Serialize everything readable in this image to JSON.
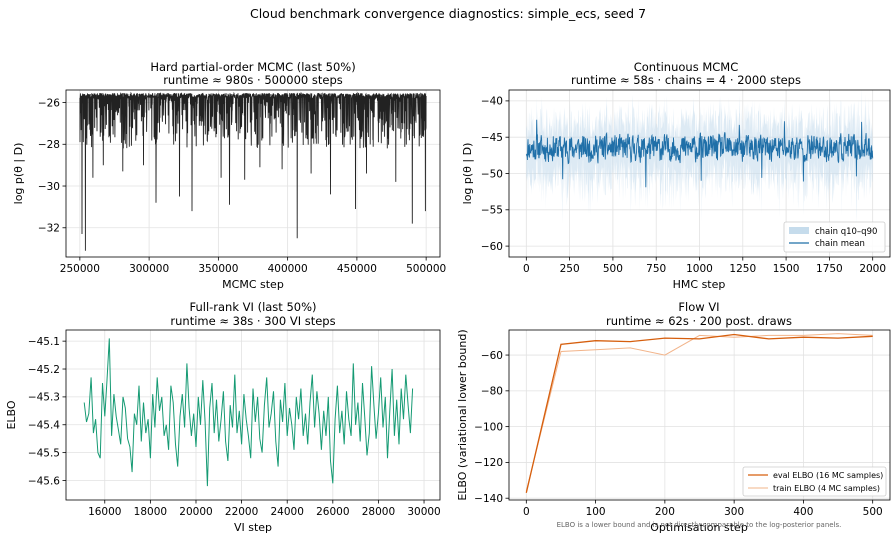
{
  "figure": {
    "suptitle": "Cloud benchmark convergence diagnostics: simple_ecs, seed 7",
    "footnote": "ELBO is a lower bound and is not directly comparable to the log-posterior panels."
  },
  "chart_data": [
    {
      "type": "line",
      "title_line1": "Hard partial-order MCMC (last 50%)",
      "title_line2": "runtime ≈ 980s · 500000 steps",
      "xlabel": "MCMC step",
      "ylabel": "log p(θ | D)",
      "xlim": [
        240000,
        510000
      ],
      "ylim": [
        -33.4,
        -25.4
      ],
      "xticks": [
        250000,
        300000,
        350000,
        400000,
        450000,
        500000
      ],
      "yticks": [
        -32,
        -30,
        -28,
        -26
      ],
      "grid": true,
      "color": "#222222",
      "trace": {
        "x_start": 250000,
        "x_end": 500000,
        "upper": -25.55,
        "typical_low": -28.2,
        "spikes": [
          {
            "x": 251500,
            "y": -32.3
          },
          {
            "x": 254000,
            "y": -33.1
          },
          {
            "x": 259500,
            "y": -29.6
          },
          {
            "x": 267000,
            "y": -29.0
          },
          {
            "x": 281000,
            "y": -29.3
          },
          {
            "x": 296000,
            "y": -29.0
          },
          {
            "x": 305000,
            "y": -30.8
          },
          {
            "x": 322000,
            "y": -30.5
          },
          {
            "x": 331000,
            "y": -31.2
          },
          {
            "x": 352000,
            "y": -29.6
          },
          {
            "x": 358000,
            "y": -30.9
          },
          {
            "x": 369000,
            "y": -29.7
          },
          {
            "x": 380000,
            "y": -29.1
          },
          {
            "x": 396000,
            "y": -29.2
          },
          {
            "x": 407000,
            "y": -32.5
          },
          {
            "x": 417000,
            "y": -29.4
          },
          {
            "x": 431000,
            "y": -30.4
          },
          {
            "x": 449000,
            "y": -31.1
          },
          {
            "x": 457000,
            "y": -29.4
          },
          {
            "x": 478000,
            "y": -29.8
          },
          {
            "x": 490000,
            "y": -31.8
          },
          {
            "x": 499500,
            "y": -31.2
          }
        ]
      }
    },
    {
      "type": "line",
      "title_line1": "Continuous MCMC",
      "title_line2": "runtime ≈ 58s · chains = 4 · 2000 steps",
      "xlabel": "HMC step",
      "ylabel": "log p(θ | D)",
      "xlim": [
        -100,
        2100
      ],
      "ylim": [
        -61.5,
        -38.5
      ],
      "xticks": [
        0,
        250,
        500,
        750,
        1000,
        1250,
        1500,
        1750,
        2000
      ],
      "yticks": [
        -60,
        -55,
        -50,
        -45,
        -40
      ],
      "grid": true,
      "legend_position": "lower right",
      "series": [
        {
          "name": "chain q10–q90",
          "color": "#c6dcec",
          "kind": "band",
          "center": -46.5,
          "halfwidth": 4.5
        },
        {
          "name": "chain mean",
          "color": "#1f6fa8",
          "kind": "line",
          "center": -46.5,
          "amplitude": 2.2,
          "dips": [
            {
              "x": 210,
              "y": -50.8
            },
            {
              "x": 690,
              "y": -51.9
            },
            {
              "x": 1010,
              "y": -51.0
            },
            {
              "x": 1360,
              "y": -50.6
            },
            {
              "x": 1600,
              "y": -51.1
            },
            {
              "x": 1905,
              "y": -50.4
            }
          ],
          "peaks": [
            {
              "x": 60,
              "y": -42.6
            },
            {
              "x": 1490,
              "y": -42.8
            },
            {
              "x": 1230,
              "y": -43.3
            },
            {
              "x": 1935,
              "y": -42.9
            }
          ]
        }
      ]
    },
    {
      "type": "line",
      "title_line1": "Full-rank VI (last 50%)",
      "title_line2": "runtime ≈ 38s · 300 VI steps",
      "xlabel": "VI step",
      "ylabel": "ELBO",
      "xlim": [
        14300,
        30700
      ],
      "ylim": [
        -45.67,
        -45.06
      ],
      "xticks": [
        16000,
        18000,
        20000,
        22000,
        24000,
        26000,
        28000,
        30000
      ],
      "yticks": [
        -45.6,
        -45.5,
        -45.4,
        -45.3,
        -45.2,
        -45.1
      ],
      "grid": true,
      "color": "#159a73",
      "x_start": 15100,
      "x_step": 100,
      "values": [
        -45.32,
        -45.39,
        -45.36,
        -45.23,
        -45.43,
        -45.38,
        -45.5,
        -45.52,
        -45.25,
        -45.37,
        -45.24,
        -45.09,
        -45.44,
        -45.29,
        -45.37,
        -45.42,
        -45.47,
        -45.3,
        -45.34,
        -45.45,
        -45.48,
        -45.57,
        -45.36,
        -45.4,
        -45.26,
        -45.46,
        -45.32,
        -45.43,
        -45.38,
        -45.52,
        -45.29,
        -45.41,
        -45.23,
        -45.35,
        -45.3,
        -45.44,
        -45.4,
        -45.49,
        -45.26,
        -45.32,
        -45.47,
        -45.55,
        -45.37,
        -45.29,
        -45.41,
        -45.18,
        -45.34,
        -45.44,
        -45.36,
        -45.48,
        -45.3,
        -45.4,
        -45.24,
        -45.39,
        -45.62,
        -45.34,
        -45.25,
        -45.43,
        -45.31,
        -45.46,
        -45.38,
        -45.28,
        -45.46,
        -45.53,
        -45.33,
        -45.41,
        -45.22,
        -45.43,
        -45.35,
        -45.47,
        -45.29,
        -45.38,
        -45.44,
        -45.52,
        -45.27,
        -45.39,
        -45.3,
        -45.45,
        -45.5,
        -45.33,
        -45.23,
        -45.41,
        -45.36,
        -45.28,
        -45.46,
        -45.55,
        -45.31,
        -45.39,
        -45.25,
        -45.44,
        -45.34,
        -45.4,
        -45.49,
        -45.3,
        -45.38,
        -45.27,
        -45.44,
        -45.36,
        -45.47,
        -45.32,
        -45.22,
        -45.41,
        -45.28,
        -45.36,
        -45.49,
        -45.35,
        -45.44,
        -45.3,
        -45.53,
        -45.61,
        -45.38,
        -45.26,
        -45.43,
        -45.35,
        -45.47,
        -45.28,
        -45.38,
        -45.44,
        -45.18,
        -45.4,
        -45.32,
        -45.46,
        -45.25,
        -45.37,
        -45.51,
        -45.43,
        -45.19,
        -45.33,
        -45.45,
        -45.36,
        -45.23,
        -45.41,
        -45.3,
        -45.52,
        -45.35,
        -45.2,
        -45.44,
        -45.31,
        -45.47,
        -45.27,
        -45.38,
        -45.22,
        -45.33,
        -45.43,
        -45.27
      ]
    },
    {
      "type": "line",
      "title_line1": "Flow VI",
      "title_line2": "runtime ≈ 62s · 200 post. draws",
      "xlabel": "Optimisation step",
      "ylabel": "ELBO (variational lower bound)",
      "xlim": [
        -25,
        525
      ],
      "ylim": [
        -141,
        -46
      ],
      "xticks": [
        0,
        100,
        200,
        300,
        400,
        500
      ],
      "yticks": [
        -140,
        -120,
        -100,
        -80,
        -60
      ],
      "grid": true,
      "legend_position": "lower right",
      "x": [
        0,
        50,
        100,
        150,
        200,
        250,
        300,
        350,
        400,
        450,
        500
      ],
      "series": [
        {
          "name": "eval ELBO (16 MC samples)",
          "color": "#d65f0e",
          "width": 1.3,
          "values": [
            -137,
            -54,
            -52,
            -52.5,
            -50.5,
            -51,
            -48.5,
            -51,
            -50,
            -50.5,
            -49.5
          ]
        },
        {
          "name": "train ELBO (4 MC samples)",
          "color": "#f2b48a",
          "width": 1.0,
          "values": [
            -136,
            -58,
            -57,
            -56,
            -60,
            -49,
            -50,
            -49,
            -49,
            -48,
            -49
          ]
        }
      ]
    }
  ]
}
